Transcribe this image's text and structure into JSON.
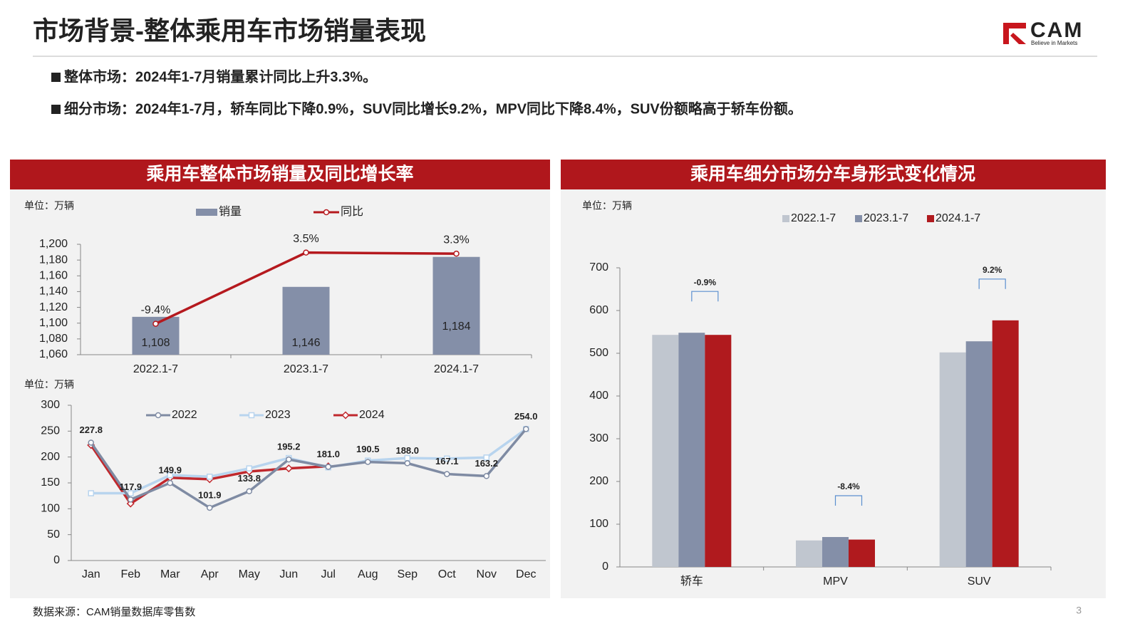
{
  "header": {
    "title": "市场背景-整体乘用车市场销量表现",
    "logo": "CAM",
    "tagline": "Believe in Markets"
  },
  "bullets": [
    "整体市场：2024年1-7月销量累计同比上升3.3%。",
    "细分市场：2024年1-7月，轿车同比下降0.9%，SUV同比增长9.2%，MPV同比下降8.4%，SUV份额略高于轿车份额。"
  ],
  "source": "数据来源：CAM销量数据库零售数",
  "page_number": "3",
  "chart_data": [
    {
      "type": "combo",
      "title": "乘用车整体市场销量及同比增长率",
      "unit": "单位：万辆",
      "categories": [
        "2022.1-7",
        "2023.1-7",
        "2024.1-7"
      ],
      "series": [
        {
          "name": "销量",
          "type": "bar",
          "color": "#848fa8",
          "values": [
            1108,
            1146,
            1184
          ],
          "value_labels": [
            "1,108",
            "1,146",
            "1,184"
          ]
        },
        {
          "name": "同比",
          "type": "line",
          "axis": "y2",
          "color": "#b5191e",
          "values": [
            -9.4,
            3.5,
            3.3
          ],
          "value_labels": [
            "-9.4%",
            "3.5%",
            "3.3%"
          ]
        }
      ],
      "ylim": [
        1060,
        1200
      ],
      "yticks": [
        {
          "value": 1060,
          "label": "1,060"
        },
        {
          "value": 1080,
          "label": "1,080"
        },
        {
          "value": 1100,
          "label": "1,100"
        },
        {
          "value": 1120,
          "label": "1,120"
        },
        {
          "value": 1140,
          "label": "1,140"
        },
        {
          "value": 1160,
          "label": "1,160"
        },
        {
          "value": 1180,
          "label": "1,180"
        },
        {
          "value": 1200,
          "label": "1,200"
        }
      ],
      "y2lim": [
        -15,
        5
      ]
    },
    {
      "type": "line",
      "unit": "单位：万辆",
      "categories": [
        "Jan",
        "Feb",
        "Mar",
        "Apr",
        "May",
        "Jun",
        "Jul",
        "Aug",
        "Sep",
        "Oct",
        "Nov",
        "Dec"
      ],
      "series": [
        {
          "name": "2022",
          "color": "#7f8ba3",
          "marker": "circle",
          "values": [
            227.8,
            117.9,
            149.9,
            101.9,
            133.8,
            195.2,
            181.0,
            190.5,
            188.0,
            167.1,
            163.2,
            254.0
          ],
          "value_labels": [
            "227.8",
            "117.9",
            "149.9",
            "101.9",
            "133.8",
            "195.2",
            "181.0",
            "190.5",
            "188.0",
            "167.1",
            "163.2",
            "254.0"
          ]
        },
        {
          "name": "2023",
          "color": "#b8d4ee",
          "marker": "square",
          "values": [
            130,
            130,
            165,
            162,
            178,
            198,
            180,
            193,
            198,
            197,
            199,
            254
          ]
        },
        {
          "name": "2024",
          "color": "#c0282d",
          "marker": "diamond",
          "values": [
            223,
            110,
            160,
            157,
            172,
            178,
            182,
            null,
            null,
            null,
            null,
            null
          ]
        }
      ],
      "ylim": [
        0,
        300
      ],
      "yticks": [
        0,
        50,
        100,
        150,
        200,
        250,
        300
      ]
    },
    {
      "type": "bar",
      "title": "乘用车细分市场分车身形式变化情况",
      "unit": "单位：万辆",
      "categories": [
        "轿车",
        "MPV",
        "SUV"
      ],
      "series": [
        {
          "name": "2022.1-7",
          "color": "#c0c6cf",
          "values": [
            543,
            62,
            502
          ]
        },
        {
          "name": "2023.1-7",
          "color": "#848fa8",
          "values": [
            548,
            70,
            528
          ]
        },
        {
          "name": "2024.1-7",
          "color": "#b01a1e",
          "values": [
            543,
            64,
            577
          ]
        }
      ],
      "ylim": [
        0,
        700
      ],
      "yticks": [
        0,
        100,
        200,
        300,
        400,
        500,
        600,
        700
      ],
      "yoy_labels": [
        "-0.9%",
        "-8.4%",
        "9.2%"
      ]
    }
  ]
}
